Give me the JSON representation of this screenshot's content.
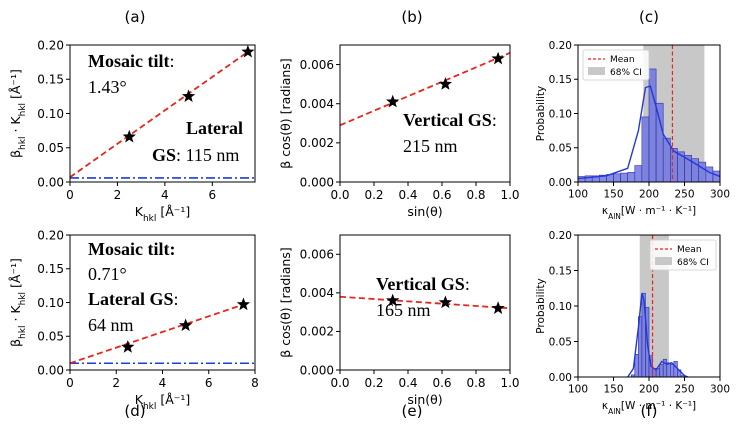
{
  "colors": {
    "fit": "#e8251d",
    "baseline": "#1a3fd6",
    "bar_fill": "#7076e0",
    "bar_edge": "#2a2fa8",
    "kde": "#2437d8",
    "ci_fill": "#c8c8c8",
    "mean": "#e8251d"
  },
  "chart_data": [
    {
      "id": "a",
      "panel_label": "(a)",
      "type": "scatter",
      "xlabel_main": "K",
      "xlabel_sub": "hkl",
      "xlabel_tail": " [Å⁻¹]",
      "ylabel_b": "β",
      "ylabel_b_sub": "hkl",
      "ylabel_mid": " · K",
      "ylabel_k_sub": "hkl",
      "ylabel_tail": " [Å⁻¹]",
      "xlim": [
        0,
        7.8
      ],
      "ylim": [
        0,
        0.2
      ],
      "xticks": [
        0,
        2,
        4,
        6
      ],
      "xtick_labels": [
        "0",
        "2",
        "4",
        "6"
      ],
      "yticks": [
        0.0,
        0.05,
        0.1,
        0.15,
        0.2
      ],
      "ytick_labels": [
        "0.00",
        "0.05",
        "0.10",
        "0.15",
        "0.20"
      ],
      "points": {
        "x": [
          2.5,
          5.0,
          7.5
        ],
        "y": [
          0.066,
          0.125,
          0.19
        ]
      },
      "fit_line": {
        "x": [
          0,
          7.5
        ],
        "y": [
          0.007,
          0.19
        ]
      },
      "baseline_y": 0.006,
      "annotations": [
        {
          "name": "mosaic-tilt-label",
          "bold": "Mosaic tilt",
          "rest": ":"
        },
        {
          "name": "mosaic-tilt-value",
          "bold": "",
          "rest": "1.43°"
        },
        {
          "name": "lateral-label",
          "bold": "Lateral",
          "rest": ""
        },
        {
          "name": "lateral-gs-value",
          "bold": "GS",
          "rest": ": 115 nm"
        }
      ]
    },
    {
      "id": "b",
      "panel_label": "(b)",
      "type": "scatter",
      "xlabel": "sin(θ)",
      "ylabel": "β cos(θ) [radians]",
      "xlim": [
        0,
        1.0
      ],
      "ylim": [
        0,
        0.007
      ],
      "xticks": [
        0,
        0.2,
        0.4,
        0.6,
        0.8,
        1.0
      ],
      "xtick_labels": [
        "0.0",
        "0.2",
        "0.4",
        "0.6",
        "0.8",
        "1.0"
      ],
      "yticks": [
        0,
        0.002,
        0.004,
        0.006
      ],
      "ytick_labels": [
        "0.000",
        "0.002",
        "0.004",
        "0.006"
      ],
      "points": {
        "x": [
          0.31,
          0.62,
          0.93
        ],
        "y": [
          0.0041,
          0.005,
          0.0063
        ]
      },
      "fit_line": {
        "x": [
          0,
          1.0
        ],
        "y": [
          0.0029,
          0.0066
        ]
      },
      "annotations": [
        {
          "name": "vertical-gs-label",
          "bold": "Vertical GS",
          "rest": ":"
        },
        {
          "name": "vertical-gs-value",
          "bold": "",
          "rest": "215 nm"
        }
      ]
    },
    {
      "id": "c",
      "panel_label": "(c)",
      "type": "histogram",
      "xlabel_main": "κ",
      "xlabel_sub": "AlN",
      "xlabel_tail": "[W · m⁻¹ · K⁻¹]",
      "ylabel": "Probability",
      "xlim": [
        100,
        300
      ],
      "ylim": [
        0,
        0.2
      ],
      "xticks": [
        100,
        150,
        200,
        250,
        300
      ],
      "xtick_labels": [
        "100",
        "150",
        "200",
        "250",
        "300"
      ],
      "yticks": [
        0,
        0.05,
        0.1,
        0.15,
        0.2
      ],
      "ytick_labels": [
        "0.00",
        "0.05",
        "0.10",
        "0.15",
        "0.20"
      ],
      "bins": [
        100,
        110,
        120,
        130,
        140,
        150,
        160,
        170,
        180,
        190,
        200,
        210,
        220,
        230,
        240,
        250,
        260,
        270,
        280,
        290,
        300
      ],
      "values": [
        0.008,
        0.009,
        0.009,
        0.01,
        0.011,
        0.012,
        0.013,
        0.014,
        0.024,
        0.095,
        0.165,
        0.115,
        0.064,
        0.049,
        0.044,
        0.039,
        0.034,
        0.029,
        0.022,
        0.016
      ],
      "kde": {
        "x": [
          100,
          140,
          170,
          185,
          195,
          202,
          210,
          220,
          235,
          260,
          285,
          300
        ],
        "y": [
          0.005,
          0.009,
          0.02,
          0.075,
          0.138,
          0.14,
          0.11,
          0.07,
          0.045,
          0.03,
          0.014,
          0.008
        ]
      },
      "ci": [
        192,
        278
      ],
      "mean": 233,
      "legend": {
        "mean_label": "Mean",
        "ci_label": "68% CI",
        "position": "top-left"
      }
    },
    {
      "id": "d",
      "panel_label": "(d)",
      "type": "scatter",
      "xlabel_main": "K",
      "xlabel_sub": "hkl",
      "xlabel_tail": " [Å⁻¹]",
      "ylabel_b": "β",
      "ylabel_b_sub": "hkl",
      "ylabel_mid": " · K",
      "ylabel_k_sub": "hkl",
      "ylabel_tail": " [Å⁻¹]",
      "xlim": [
        0,
        8.0
      ],
      "ylim": [
        0,
        0.2
      ],
      "xticks": [
        0,
        2,
        4,
        6,
        8
      ],
      "xtick_labels": [
        "0",
        "2",
        "4",
        "6",
        "8"
      ],
      "yticks": [
        0.0,
        0.05,
        0.1,
        0.15,
        0.2
      ],
      "ytick_labels": [
        "0.00",
        "0.05",
        "0.10",
        "0.15",
        "0.20"
      ],
      "points": {
        "x": [
          2.5,
          5.0,
          7.5
        ],
        "y": [
          0.034,
          0.066,
          0.097
        ]
      },
      "fit_line": {
        "x": [
          0,
          7.5
        ],
        "y": [
          0.01,
          0.097
        ]
      },
      "baseline_y": 0.01,
      "annotations": [
        {
          "name": "mosaic-tilt-label",
          "bold": "Mosaic tilt:",
          "rest": ""
        },
        {
          "name": "mosaic-tilt-value",
          "bold": "",
          "rest": "0.71°"
        },
        {
          "name": "lateral-gs-label",
          "bold": "Lateral GS",
          "rest": ":"
        },
        {
          "name": "lateral-gs-value",
          "bold": "",
          "rest": "64 nm"
        }
      ]
    },
    {
      "id": "e",
      "panel_label": "(e)",
      "type": "scatter",
      "xlabel": "sin(θ)",
      "ylabel": "β cos(θ) [radians]",
      "xlim": [
        0,
        1.0
      ],
      "ylim": [
        0,
        0.007
      ],
      "xticks": [
        0,
        0.2,
        0.4,
        0.6,
        0.8,
        1.0
      ],
      "xtick_labels": [
        "0.0",
        "0.2",
        "0.4",
        "0.6",
        "0.8",
        "1.0"
      ],
      "yticks": [
        0,
        0.002,
        0.004,
        0.006
      ],
      "ytick_labels": [
        "0.000",
        "0.002",
        "0.004",
        "0.006"
      ],
      "points": {
        "x": [
          0.31,
          0.62,
          0.93
        ],
        "y": [
          0.0036,
          0.0035,
          0.0032
        ]
      },
      "fit_line": {
        "x": [
          0,
          1.0
        ],
        "y": [
          0.0038,
          0.0032
        ]
      },
      "annotations": [
        {
          "name": "vertical-gs-label",
          "bold": "Vertical GS",
          "rest": ":"
        },
        {
          "name": "vertical-gs-value",
          "bold": "",
          "rest": "165 nm"
        }
      ]
    },
    {
      "id": "f",
      "panel_label": "(f)",
      "type": "histogram",
      "xlabel_main": "κ",
      "xlabel_sub": "AlN",
      "xlabel_tail": "[W · m⁻¹ · K⁻¹]",
      "ylabel": "Probability",
      "xlim": [
        100,
        300
      ],
      "ylim": [
        0,
        0.2
      ],
      "xticks": [
        100,
        150,
        200,
        250,
        300
      ],
      "xtick_labels": [
        "100",
        "150",
        "200",
        "250",
        "300"
      ],
      "yticks": [
        0,
        0.05,
        0.1,
        0.15,
        0.2
      ],
      "ytick_labels": [
        "0.00",
        "0.05",
        "0.10",
        "0.15",
        "0.20"
      ],
      "bins": [
        175,
        180,
        185,
        190,
        195,
        200,
        205,
        210,
        215,
        220,
        225,
        230,
        235,
        240,
        245,
        250
      ],
      "values": [
        0.003,
        0.032,
        0.085,
        0.118,
        0.098,
        0.03,
        0.012,
        0.012,
        0.018,
        0.025,
        0.02,
        0.018,
        0.022,
        0.01,
        0.002
      ],
      "kde": {
        "x": [
          170,
          178,
          185,
          190,
          193,
          198,
          203,
          210,
          218,
          225,
          232,
          240,
          250,
          255
        ],
        "y": [
          0.0,
          0.012,
          0.07,
          0.118,
          0.108,
          0.045,
          0.015,
          0.01,
          0.022,
          0.018,
          0.02,
          0.012,
          0.002,
          0.0
        ]
      },
      "ci": [
        187,
        228
      ],
      "mean": 205,
      "legend": {
        "mean_label": "Mean",
        "ci_label": "68% CI",
        "position": "top-right"
      }
    }
  ]
}
